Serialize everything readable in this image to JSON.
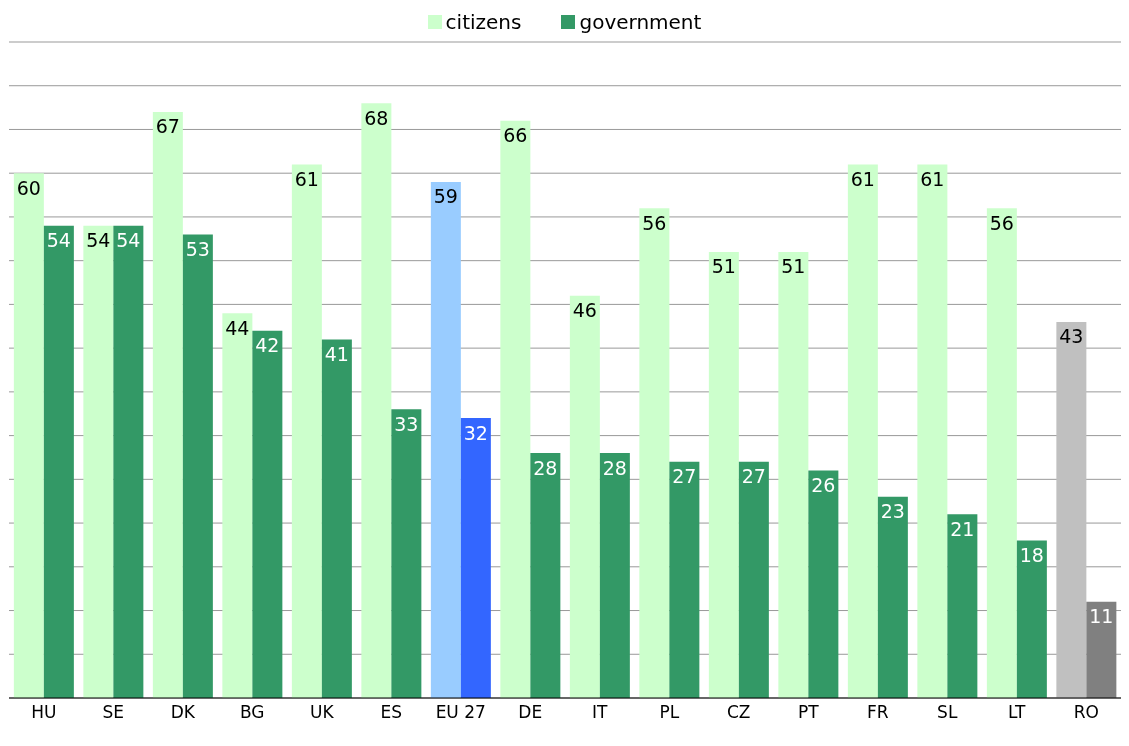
{
  "chart_data": {
    "type": "bar",
    "categories": [
      "HU",
      "SE",
      "DK",
      "BG",
      "UK",
      "ES",
      "EU 27",
      "DE",
      "IT",
      "PL",
      "CZ",
      "PT",
      "FR",
      "SL",
      "LT",
      "RO"
    ],
    "series": [
      {
        "name": "citizens",
        "color": "#ccffcc",
        "colors": [
          "#ccffcc",
          "#ccffcc",
          "#ccffcc",
          "#ccffcc",
          "#ccffcc",
          "#ccffcc",
          "#99ccff",
          "#ccffcc",
          "#ccffcc",
          "#ccffcc",
          "#ccffcc",
          "#ccffcc",
          "#ccffcc",
          "#ccffcc",
          "#ccffcc",
          "#c0c0c0"
        ],
        "values": [
          60,
          54,
          67,
          44,
          61,
          68,
          59,
          66,
          46,
          56,
          51,
          51,
          61,
          61,
          56,
          43
        ]
      },
      {
        "name": "government",
        "color": "#339966",
        "colors": [
          "#339966",
          "#339966",
          "#339966",
          "#339966",
          "#339966",
          "#339966",
          "#3366ff",
          "#339966",
          "#339966",
          "#339966",
          "#339966",
          "#339966",
          "#339966",
          "#339966",
          "#339966",
          "#808080"
        ],
        "values": [
          54,
          54,
          53,
          42,
          41,
          33,
          32,
          28,
          28,
          27,
          27,
          26,
          23,
          21,
          18,
          11
        ]
      }
    ],
    "tick_labels": "x",
    "grid": "y",
    "legend": "top",
    "data_labels": true
  }
}
